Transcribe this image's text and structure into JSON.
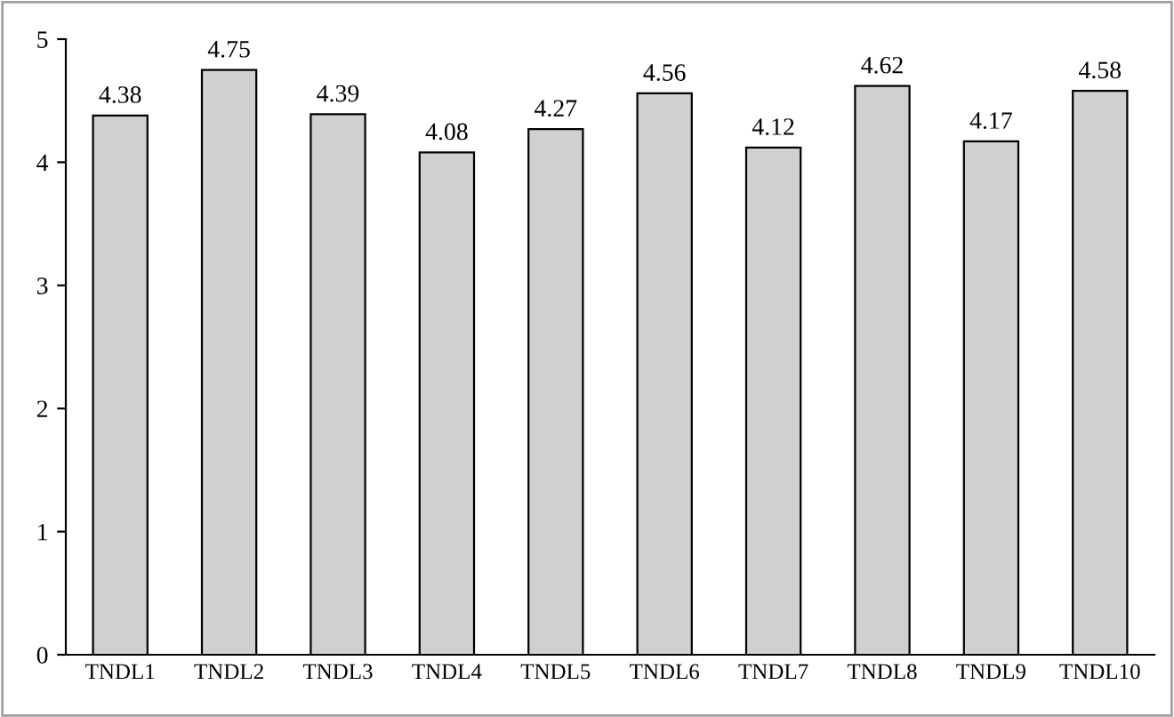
{
  "chart_data": {
    "type": "bar",
    "categories": [
      "TNDL1",
      "TNDL2",
      "TNDL3",
      "TNDL4",
      "TNDL5",
      "TNDL6",
      "TNDL7",
      "TNDL8",
      "TNDL9",
      "TNDL10"
    ],
    "values": [
      4.38,
      4.75,
      4.39,
      4.08,
      4.27,
      4.56,
      4.12,
      4.62,
      4.17,
      4.58
    ],
    "color": "#d0d0d0",
    "ylim": [
      0,
      5
    ],
    "yticks": [
      0,
      1,
      2,
      3,
      4,
      5
    ],
    "grid": false,
    "data_labels": true
  }
}
